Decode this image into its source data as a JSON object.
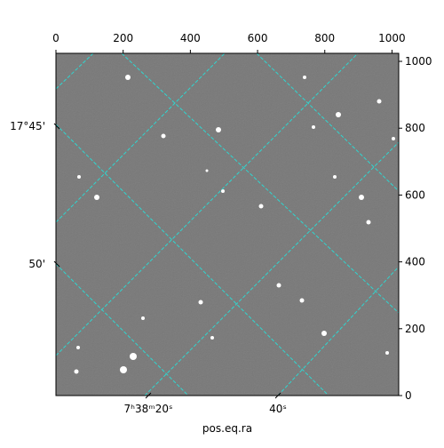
{
  "chart_data": {
    "type": "image",
    "xlim": [
      0,
      1020
    ],
    "ylim": [
      0,
      1024
    ],
    "xticks": [
      0,
      200,
      400,
      600,
      800,
      1000
    ],
    "yticks": [
      0,
      200,
      400,
      600,
      800,
      1000
    ],
    "left_labels": [
      "17°45'",
      "50'"
    ],
    "bottom_labels": [
      "7ʰ38ᵐ20ˢ",
      "40ˢ"
    ],
    "xlabel": "pos.eq.ra"
  }
}
